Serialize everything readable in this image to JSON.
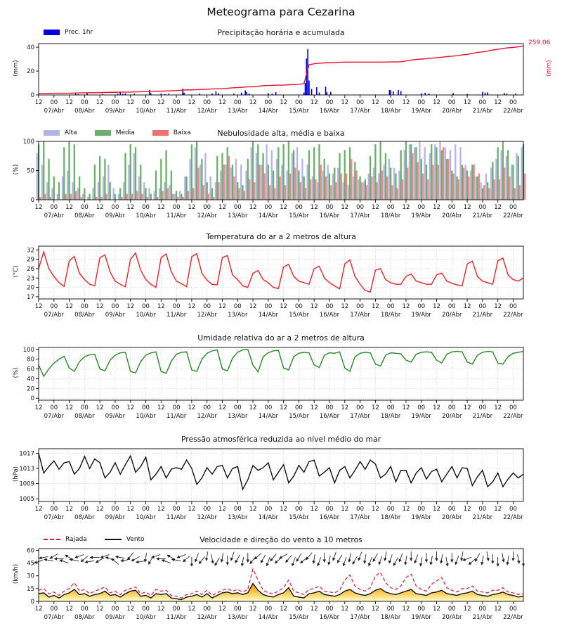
{
  "title": "Meteograma para Cezarina",
  "x_axis": {
    "tick_step_hours": 12,
    "hours_total": 380,
    "tick_labels_alternate": [
      "12",
      "00"
    ],
    "dates": [
      "07/Abr",
      "08/Abr",
      "09/Abr",
      "10/Abr",
      "11/Abr",
      "12/Abr",
      "13/Abr",
      "14/Abr",
      "15/Abr",
      "16/Abr",
      "17/Abr",
      "18/Abr",
      "19/Abr",
      "20/Abr",
      "21/Abr",
      "22/Abr"
    ]
  },
  "panels": {
    "precip": {
      "title": "Precipitação horária e acumulada",
      "ylabel": "(mm)",
      "legend": [
        {
          "label": "Prec. 1hr",
          "color": "#0000dd"
        }
      ],
      "right_value": "259.06",
      "right_ylabel": "(mm)",
      "right_color": "#e8112d"
    },
    "clouds": {
      "title": "Nebulosidade alta, média e baixa",
      "ylabel": "(%)",
      "legend": [
        {
          "label": "Alta",
          "color": "#b4b4e8"
        },
        {
          "label": "Média",
          "color": "#6bb06b"
        },
        {
          "label": "Baixa",
          "color": "#ee7272"
        }
      ]
    },
    "temp": {
      "title": "Temperatura do ar a 2 metros de altura",
      "ylabel": "(°C)"
    },
    "humidity": {
      "title": "Umidade relativa do ar a 2 metros de altura",
      "ylabel": "(%)"
    },
    "pressure": {
      "title": "Pressão atmosférica reduzida ao nível médio do mar",
      "ylabel": "(hPa)"
    },
    "wind": {
      "title": "Velocidade e direção do vento a 10 metros",
      "ylabel": "(km/h)",
      "legend": [
        {
          "label": "Rajada",
          "color": "#e8112d",
          "style": "dashed"
        },
        {
          "label": "Vento",
          "color": "#111111",
          "style": "solid"
        }
      ]
    }
  },
  "chart_data": [
    {
      "id": "precip",
      "type": "bar",
      "x_step_hours": 4,
      "ylim": [
        0,
        43
      ],
      "yticks": [
        0,
        20,
        40
      ],
      "bar_color": "#0000dd",
      "line_color": "#e8112d",
      "right_ylim": [
        0,
        272
      ],
      "accum_total": 259.06,
      "bars_hour_mm": [
        [
          29,
          1.2
        ],
        [
          31,
          0.6
        ],
        [
          38,
          1.5
        ],
        [
          50,
          0.7
        ],
        [
          62,
          1.0
        ],
        [
          64,
          2.2
        ],
        [
          66,
          1.1
        ],
        [
          68,
          1.4
        ],
        [
          75,
          1.0
        ],
        [
          87,
          4.3
        ],
        [
          88,
          1.5
        ],
        [
          96,
          1.2
        ],
        [
          99,
          0.8
        ],
        [
          102,
          1.0
        ],
        [
          113,
          5.3
        ],
        [
          114,
          2.0
        ],
        [
          126,
          1.1
        ],
        [
          136,
          1.3
        ],
        [
          139,
          3.0
        ],
        [
          141,
          1.5
        ],
        [
          153,
          1.0
        ],
        [
          159,
          2.0
        ],
        [
          162,
          3.8
        ],
        [
          163,
          2.5
        ],
        [
          165,
          1.2
        ],
        [
          180,
          1.5
        ],
        [
          183,
          1.0
        ],
        [
          186,
          2.3
        ],
        [
          208,
          2.0
        ],
        [
          209,
          10
        ],
        [
          210,
          30.5
        ],
        [
          211,
          38.5
        ],
        [
          212,
          12
        ],
        [
          214,
          5
        ],
        [
          218,
          6.5
        ],
        [
          220,
          2.0
        ],
        [
          225,
          7.0
        ],
        [
          226,
          2.2
        ],
        [
          229,
          2.6
        ],
        [
          275,
          4.2
        ],
        [
          276,
          4.0
        ],
        [
          278,
          3.0
        ],
        [
          282,
          4.1
        ],
        [
          284,
          3.3
        ],
        [
          300,
          1.4
        ],
        [
          303,
          1.8
        ],
        [
          306,
          1.2
        ],
        [
          325,
          1.6
        ],
        [
          336,
          0.8
        ],
        [
          348,
          2.6
        ],
        [
          350,
          2.0
        ],
        [
          352,
          2.2
        ],
        [
          365,
          1.5
        ],
        [
          367,
          1.0
        ],
        [
          374,
          1.1
        ]
      ],
      "accum_mm": [
        8,
        8,
        8,
        9,
        9,
        9,
        9,
        10,
        11,
        11,
        12,
        12,
        12,
        13,
        14,
        14,
        15,
        15,
        15,
        16,
        17,
        18,
        19,
        20,
        20,
        21,
        22,
        23,
        25,
        27,
        27,
        28,
        29,
        30,
        32,
        33,
        33,
        35,
        38,
        39,
        41,
        43,
        43,
        46,
        49,
        50,
        51,
        52,
        52,
        54,
        55,
        56,
        60,
        160,
        165,
        168,
        170,
        171,
        172,
        173,
        174,
        174,
        174,
        174,
        174,
        174,
        174,
        174,
        174,
        175,
        175,
        176,
        180,
        185,
        188,
        190,
        192,
        195,
        197,
        200,
        203,
        205,
        208,
        212,
        215,
        220,
        225,
        228,
        232,
        238,
        242,
        246,
        250,
        252,
        255,
        259
      ]
    },
    {
      "id": "clouds",
      "type": "bar",
      "x_step_hours": 4,
      "ylim": [
        0,
        100
      ],
      "yticks": [
        0,
        50,
        100
      ],
      "series": [
        {
          "name": "Alta",
          "color": "#b4b4e8",
          "values": [
            80,
            60,
            30,
            20,
            10,
            40,
            50,
            30,
            20,
            10,
            5,
            20,
            30,
            40,
            60,
            20,
            10,
            30,
            60,
            80,
            40,
            30,
            20,
            15,
            20,
            30,
            25,
            10,
            15,
            40,
            70,
            90,
            60,
            80,
            40,
            30,
            50,
            60,
            55,
            70,
            60,
            50,
            90,
            80,
            60,
            95,
            85,
            70,
            60,
            50,
            80,
            90,
            70,
            60,
            40,
            30,
            50,
            60,
            45,
            55,
            30,
            25,
            40,
            35,
            30,
            45,
            55,
            45,
            60,
            70,
            55,
            50,
            85,
            95,
            90,
            100,
            90,
            80,
            95,
            100,
            90,
            85,
            95,
            90,
            60,
            50,
            40,
            30,
            45,
            55,
            70,
            85,
            75,
            60,
            80,
            90
          ]
        },
        {
          "name": "Média",
          "color": "#6bb06b",
          "values": [
            95,
            100,
            70,
            40,
            30,
            90,
            100,
            95,
            40,
            20,
            10,
            60,
            75,
            70,
            30,
            10,
            20,
            80,
            95,
            90,
            60,
            20,
            10,
            50,
            70,
            85,
            50,
            15,
            10,
            40,
            95,
            100,
            70,
            30,
            20,
            75,
            80,
            90,
            60,
            30,
            25,
            70,
            100,
            95,
            80,
            60,
            50,
            90,
            95,
            100,
            85,
            50,
            40,
            85,
            90,
            95,
            70,
            45,
            55,
            80,
            85,
            90,
            65,
            40,
            35,
            75,
            95,
            100,
            80,
            55,
            45,
            85,
            100,
            95,
            90,
            70,
            60,
            95,
            90,
            85,
            70,
            50,
            40,
            60,
            50,
            60,
            40,
            20,
            30,
            65,
            90,
            100,
            85,
            60,
            75,
            95
          ]
        },
        {
          "name": "Baixa",
          "color": "#ee7272",
          "values": [
            5,
            10,
            5,
            0,
            0,
            10,
            10,
            15,
            5,
            0,
            0,
            5,
            5,
            10,
            0,
            0,
            5,
            10,
            10,
            15,
            10,
            5,
            0,
            5,
            15,
            20,
            10,
            5,
            5,
            15,
            20,
            55,
            25,
            10,
            5,
            30,
            60,
            75,
            40,
            20,
            15,
            35,
            30,
            60,
            45,
            25,
            20,
            40,
            25,
            45,
            55,
            30,
            20,
            35,
            35,
            60,
            40,
            25,
            30,
            45,
            45,
            70,
            50,
            30,
            25,
            40,
            30,
            50,
            40,
            25,
            20,
            35,
            55,
            80,
            65,
            45,
            35,
            60,
            60,
            90,
            70,
            45,
            35,
            55,
            40,
            60,
            45,
            25,
            20,
            35,
            35,
            55,
            40,
            20,
            25,
            45
          ]
        }
      ]
    },
    {
      "id": "temp",
      "type": "line",
      "x_step_hours": 4,
      "color": "#ee2222",
      "grid": true,
      "ylim": [
        16.3,
        33.2
      ],
      "yticks": [
        17,
        20,
        23,
        26,
        29,
        32
      ],
      "values": [
        26,
        31.4,
        26,
        23.5,
        21.5,
        20.3,
        28.5,
        29.9,
        24.5,
        22.5,
        21,
        20.5,
        29.5,
        30.4,
        25,
        22,
        21,
        20.2,
        29,
        31,
        25.5,
        22.5,
        21,
        20,
        29.5,
        30.7,
        25,
        22,
        21.2,
        20.2,
        29.8,
        30.8,
        24.5,
        22.3,
        21,
        20.8,
        29.5,
        30.2,
        24,
        22.5,
        20.5,
        20,
        24.5,
        25.4,
        22.5,
        21.5,
        20,
        19.6,
        26.5,
        27.4,
        23.5,
        22,
        21.5,
        21,
        26,
        26.8,
        23,
        21.5,
        20.5,
        19.5,
        27.5,
        28.8,
        23.5,
        21,
        19,
        18.5,
        25.5,
        26,
        22.5,
        21.5,
        21,
        21,
        23.5,
        24.3,
        22,
        21.5,
        21,
        21,
        24,
        24.6,
        22,
        21.3,
        20.8,
        20.5,
        27.5,
        28.4,
        23.5,
        22,
        21.5,
        21,
        28.5,
        29.4,
        24,
        22.5,
        22,
        23
      ]
    },
    {
      "id": "humidity",
      "type": "line",
      "x_step_hours": 4,
      "color": "#228b22",
      "grid": true,
      "ylim": [
        -4,
        104
      ],
      "yticks": [
        0,
        20,
        40,
        60,
        80,
        100
      ],
      "values": [
        68,
        45,
        60,
        72,
        80,
        86,
        62,
        55,
        75,
        85,
        89,
        90,
        60,
        56,
        78,
        88,
        93,
        94,
        55,
        52,
        75,
        88,
        93,
        95,
        55,
        51,
        76,
        90,
        94,
        95,
        58,
        55,
        80,
        92,
        97,
        99,
        60,
        56,
        82,
        94,
        99,
        100,
        68,
        54,
        85,
        93,
        97,
        98,
        62,
        58,
        85,
        92,
        94,
        93,
        68,
        63,
        88,
        93,
        92,
        95,
        62,
        55,
        85,
        92,
        94,
        93,
        70,
        66,
        88,
        93,
        92,
        91,
        78,
        74,
        90,
        94,
        95,
        94,
        78,
        72,
        90,
        95,
        96,
        95,
        74,
        70,
        88,
        94,
        96,
        95,
        72,
        70,
        85,
        92,
        94,
        96
      ]
    },
    {
      "id": "pressure",
      "type": "line",
      "x_step_hours": 4,
      "color": "#111111",
      "grid": true,
      "ylim": [
        1004.3,
        1018.2
      ],
      "yticks": [
        1005,
        1009,
        1013,
        1017
      ],
      "values": [
        1017,
        1011.8,
        1013.5,
        1015,
        1012.8,
        1014.5,
        1014.8,
        1011.5,
        1013,
        1016.2,
        1013,
        1015.5,
        1014.5,
        1010.5,
        1012,
        1014.5,
        1011.5,
        1014,
        1016.3,
        1012,
        1013.5,
        1016,
        1010,
        1011.5,
        1013.5,
        1010.5,
        1012.8,
        1013.2,
        1012.8,
        1015.2,
        1013,
        1008.8,
        1010.5,
        1013.2,
        1011.5,
        1013.5,
        1013.8,
        1010.5,
        1013,
        1013.5,
        1007.5,
        1010,
        1013.8,
        1012.5,
        1013.2,
        1014.5,
        1010,
        1012,
        1014,
        1009.2,
        1011,
        1013.8,
        1012,
        1014.8,
        1015.2,
        1011,
        1012,
        1013.2,
        1009.2,
        1012.5,
        1013.5,
        1010.5,
        1012.5,
        1014.8,
        1012.8,
        1015.2,
        1014.2,
        1010.5,
        1011.5,
        1013.5,
        1009.5,
        1012.5,
        1012.5,
        1009.2,
        1011.8,
        1013.2,
        1010.2,
        1012.2,
        1012.8,
        1009.5,
        1011.5,
        1013.5,
        1010.5,
        1013.2,
        1013,
        1008.5,
        1010.8,
        1012.5,
        1008.2,
        1009.5,
        1011.8,
        1008.2,
        1010.2,
        1011.8,
        1010.5,
        1011.5
      ]
    },
    {
      "id": "wind",
      "type": "line",
      "x_step_hours": 4,
      "ylim": [
        0,
        62
      ],
      "yticks": [
        0,
        15,
        30,
        45,
        60
      ],
      "wind_color": "#111111",
      "gust_color": "#e8112d",
      "fill_top_color": "#ff8a00",
      "fill_bottom_color": "#ffffd0",
      "wind_kmh": [
        9,
        10,
        5,
        7,
        4,
        8,
        10,
        14,
        8,
        9,
        6,
        8,
        9,
        12,
        7,
        8,
        5,
        9,
        12,
        13,
        6,
        7,
        4,
        9,
        8,
        9,
        4,
        3,
        2,
        5,
        6,
        8,
        5,
        9,
        4,
        7,
        10,
        11,
        9,
        10,
        8,
        10,
        21,
        13,
        8,
        6,
        5,
        8,
        10,
        16,
        6,
        5,
        4,
        9,
        10,
        12,
        8,
        7,
        6,
        8,
        12,
        14,
        10,
        8,
        7,
        9,
        13,
        15,
        11,
        9,
        8,
        10,
        12,
        14,
        9,
        8,
        7,
        10,
        11,
        13,
        9,
        8,
        7,
        9,
        10,
        12,
        8,
        7,
        6,
        8,
        9,
        11,
        8,
        7,
        5,
        6
      ],
      "gust_kmh": [
        13,
        15,
        9,
        11,
        7,
        12,
        15,
        22,
        12,
        14,
        9,
        12,
        14,
        17,
        10,
        12,
        8,
        13,
        15,
        17,
        9,
        11,
        7,
        14,
        12,
        13,
        7,
        6,
        4,
        8,
        9,
        12,
        8,
        13,
        7,
        10,
        13,
        15,
        12,
        14,
        11,
        14,
        38,
        25,
        13,
        10,
        9,
        12,
        16,
        25,
        12,
        10,
        8,
        14,
        15,
        18,
        12,
        11,
        10,
        13,
        25,
        31,
        18,
        14,
        12,
        16,
        30,
        34,
        22,
        16,
        14,
        18,
        28,
        32,
        18,
        14,
        12,
        20,
        24,
        28,
        16,
        13,
        11,
        15,
        15,
        18,
        12,
        11,
        10,
        13,
        13,
        16,
        11,
        10,
        8,
        9
      ],
      "dir_deg": [
        200,
        190,
        170,
        210,
        180,
        160,
        150,
        170,
        200,
        220,
        190,
        180,
        210,
        200,
        160,
        140,
        170,
        190,
        230,
        210,
        190,
        260,
        240,
        200,
        180,
        160,
        150,
        170,
        200,
        220,
        270,
        250,
        230,
        260,
        280,
        240,
        260,
        270,
        250,
        240,
        260,
        270,
        230,
        220,
        240,
        250,
        230,
        220,
        210,
        230,
        250,
        240,
        220,
        230,
        260,
        250,
        270,
        260,
        250,
        240,
        250,
        260,
        240,
        250,
        260,
        250,
        240,
        250,
        260,
        250,
        240,
        250,
        260,
        270,
        250,
        260,
        270,
        260,
        270,
        260,
        280,
        270,
        250,
        260,
        200,
        220,
        240,
        260,
        280,
        270,
        270,
        280,
        260,
        270,
        280,
        270
      ]
    }
  ]
}
